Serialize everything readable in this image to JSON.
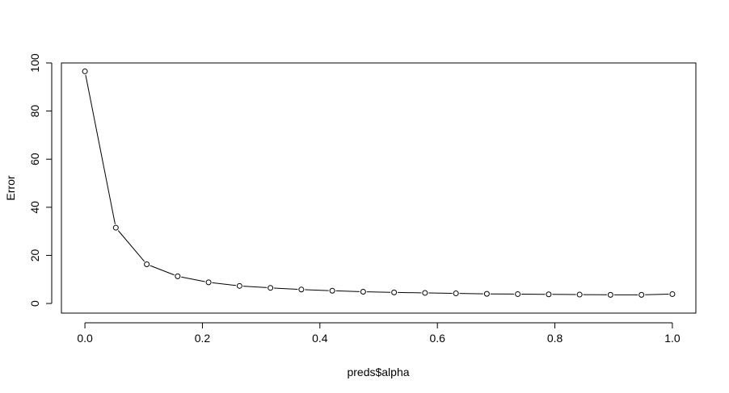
{
  "chart_data": {
    "type": "line",
    "title": "",
    "xlabel": "preds$alpha",
    "ylabel": "Error",
    "xlim": [
      -0.04,
      1.04
    ],
    "ylim": [
      -4,
      100
    ],
    "xticks": [
      0.0,
      0.2,
      0.4,
      0.6,
      0.8,
      1.0
    ],
    "xtick_labels": [
      "0.0",
      "0.2",
      "0.4",
      "0.6",
      "0.8",
      "1.0"
    ],
    "yticks": [
      0,
      20,
      40,
      60,
      80,
      100
    ],
    "ytick_labels": [
      "0",
      "20",
      "40",
      "60",
      "80",
      "100"
    ],
    "grid": false,
    "legend": "none",
    "marker": "open-circle",
    "line_color": "#000000",
    "series": [
      {
        "x": [
          0.0,
          0.0526,
          0.1053,
          0.1579,
          0.2105,
          0.2632,
          0.3158,
          0.3684,
          0.4211,
          0.4737,
          0.5263,
          0.5789,
          0.6316,
          0.6842,
          0.7368,
          0.7895,
          0.8421,
          0.8947,
          0.9474,
          1.0
        ],
        "y": [
          96.5,
          31.5,
          16.3,
          11.3,
          8.8,
          7.3,
          6.5,
          5.8,
          5.3,
          4.9,
          4.6,
          4.4,
          4.2,
          4.0,
          3.9,
          3.8,
          3.7,
          3.6,
          3.6,
          3.9
        ]
      }
    ]
  }
}
